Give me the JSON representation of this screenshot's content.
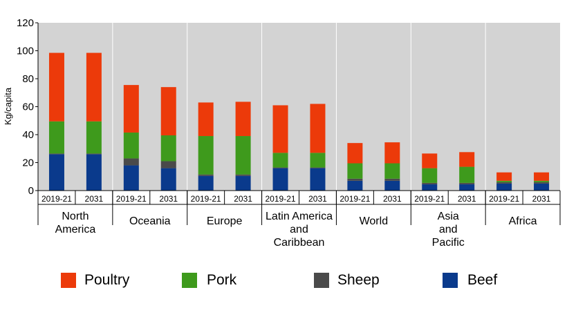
{
  "chart_data": {
    "type": "bar",
    "stacked": true,
    "ylabel": "Kg/capita",
    "ylim": [
      0,
      120
    ],
    "yticks": [
      0,
      20,
      40,
      60,
      80,
      100,
      120
    ],
    "grid": "vertical separators between regions",
    "background": "#d3d3d3",
    "legend_placement": "bottom",
    "groups": [
      {
        "label": "North\nAmerica",
        "categories": [
          "2019-21",
          "2031"
        ]
      },
      {
        "label": "Oceania",
        "categories": [
          "2019-21",
          "2031"
        ]
      },
      {
        "label": "Europe",
        "categories": [
          "2019-21",
          "2031"
        ]
      },
      {
        "label": "Latin America\nand\nCaribbean",
        "categories": [
          "2019-21",
          "2031"
        ]
      },
      {
        "label": "World",
        "categories": [
          "2019-21",
          "2031"
        ]
      },
      {
        "label": "Asia\nand\nPacific",
        "categories": [
          "2019-21",
          "2031"
        ]
      },
      {
        "label": "Africa",
        "categories": [
          "2019-21",
          "2031"
        ]
      }
    ],
    "series": [
      {
        "name": "Beef",
        "color": "#0a3a8c",
        "values": [
          26,
          26,
          18,
          16,
          10.5,
          10.5,
          16,
          16,
          7,
          7,
          4.5,
          4.5,
          5,
          5
        ]
      },
      {
        "name": "Sheep",
        "color": "#4a4a4a",
        "values": [
          0.5,
          0.5,
          5,
          5,
          1,
          1,
          0.5,
          0.5,
          1.5,
          1.5,
          1,
          1,
          1,
          1
        ]
      },
      {
        "name": "Pork",
        "color": "#3e9a1c",
        "values": [
          23,
          23,
          18.5,
          18.5,
          27.5,
          27.5,
          10.5,
          10.5,
          11,
          11,
          10.5,
          11.5,
          1,
          1
        ]
      },
      {
        "name": "Poultry",
        "color": "#ec3a0a",
        "values": [
          49,
          49,
          34,
          34.5,
          24,
          24.5,
          34,
          35,
          14.5,
          15,
          10.5,
          10.5,
          6,
          6
        ]
      }
    ]
  },
  "legend": [
    {
      "label": "Poultry",
      "color": "#ec3a0a"
    },
    {
      "label": "Pork",
      "color": "#3e9a1c"
    },
    {
      "label": "Sheep",
      "color": "#4a4a4a"
    },
    {
      "label": "Beef",
      "color": "#0a3a8c"
    }
  ]
}
